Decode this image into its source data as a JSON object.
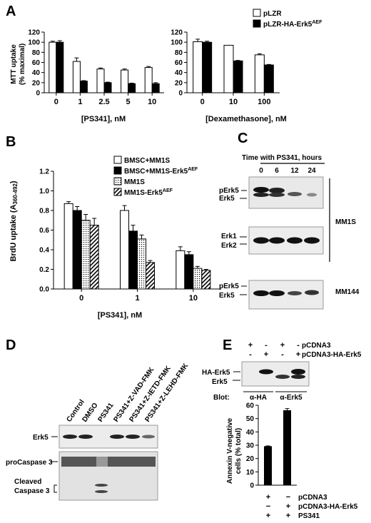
{
  "panels": {
    "A": "A",
    "B": "B",
    "C": "C",
    "D": "D",
    "E": "E"
  },
  "panelA": {
    "legend": [
      {
        "label": "pLZR",
        "sup": "",
        "color": "#ffffff"
      },
      {
        "label": "pLZR-HA-Erk5",
        "sup": "AEF",
        "color": "#000000"
      }
    ],
    "left_xlabel": "[PS341], nM",
    "right_xlabel": "[Dexamethasone], nM",
    "ylabel_line1": "MTT uptake",
    "ylabel_line2": "(% maximal)"
  },
  "panelB": {
    "legend": [
      {
        "label": "BMSC+MM1S",
        "sup": ""
      },
      {
        "label": "BMSC+MM1S-Erk5",
        "sup": "AEF"
      },
      {
        "label": "MM1S",
        "sup": ""
      },
      {
        "label": "MM1S-Erk5",
        "sup": "AEF"
      }
    ],
    "ylabel": "BrdU uptake (A",
    "ylabel_sub": "360-492",
    "ylabel_end": ")",
    "xlabel": "[PS341], nM"
  },
  "panelC": {
    "title": "Time with PS341, hours",
    "times": [
      "0",
      "6",
      "12",
      "24"
    ],
    "labels": {
      "perk5_a": "pErk5",
      "erk5_a": "Erk5",
      "erk1": "Erk1",
      "erk2": "Erk2",
      "perk5_b": "pErk5",
      "erk5_b": "Erk5",
      "mm1s": "MM1S",
      "mm144": "MM144"
    }
  },
  "panelD": {
    "lanes": [
      "Control",
      "DMSO",
      "PS341",
      "PS341+Z-VAD-FMK",
      "PS341+Z-IETD-FMK",
      "PS341+Z-LEHD-FMK"
    ],
    "erk5": "Erk5",
    "procasp": "proCaspase 3",
    "cleaved1": "Cleaved",
    "cleaved2": "Caspase 3"
  },
  "panelE": {
    "pm_rows": [
      {
        "label": "pCDNA3",
        "signs": [
          "+",
          "-",
          "+",
          "-"
        ]
      },
      {
        "label": "pCDNA3-HA-Erk5",
        "signs": [
          "-",
          "+",
          "-",
          "+"
        ]
      }
    ],
    "ha_erk5": "HA-Erk5",
    "erk5": "Erk5",
    "blot": "Blot:",
    "blot_ha": "α-HA",
    "blot_erk5": "α-Erk5",
    "ylabel_line1": "Annexin V-negative",
    "ylabel_line2": "cells (% total)",
    "bottom_rows": [
      {
        "label": "pCDNA3",
        "signs": [
          "+",
          "−"
        ]
      },
      {
        "label": "pCDNA3-HA-Erk5",
        "signs": [
          "−",
          "+"
        ]
      },
      {
        "label": "PS341",
        "signs": [
          "+",
          "+"
        ]
      }
    ]
  },
  "chart_data": [
    {
      "type": "bar",
      "panel": "A-left",
      "categories": [
        "0",
        "1",
        "2.5",
        "5",
        "10"
      ],
      "series": [
        {
          "name": "pLZR",
          "values": [
            100,
            62,
            47,
            45,
            50
          ],
          "errors": [
            2,
            7,
            2,
            2,
            2
          ]
        },
        {
          "name": "pLZR-HA-Erk5AEF",
          "values": [
            100,
            23,
            20,
            18,
            18
          ],
          "errors": [
            3,
            1,
            1,
            1,
            2
          ]
        }
      ],
      "ylim": [
        0,
        120
      ],
      "yticks": [
        0,
        20,
        40,
        60,
        80,
        100,
        120
      ],
      "xlabel": "[PS341], nM",
      "ylabel": "MTT uptake (% maximal)"
    },
    {
      "type": "bar",
      "panel": "A-right",
      "categories": [
        "0",
        "10",
        "100"
      ],
      "series": [
        {
          "name": "pLZR",
          "values": [
            101,
            94,
            75
          ],
          "errors": [
            5,
            0,
            2
          ]
        },
        {
          "name": "pLZR-HA-Erk5AEF",
          "values": [
            100,
            63,
            55
          ],
          "errors": [
            2,
            1,
            1
          ]
        }
      ],
      "ylim": [
        0,
        120
      ],
      "yticks": [
        0,
        20,
        40,
        60,
        80,
        100,
        120
      ],
      "xlabel": "[Dexamethasone], nM"
    },
    {
      "type": "bar",
      "panel": "B",
      "categories": [
        "0",
        "1",
        "10"
      ],
      "series": [
        {
          "name": "BMSC+MM1S",
          "values": [
            0.87,
            0.8,
            0.39
          ],
          "errors": [
            0.02,
            0.05,
            0.04
          ]
        },
        {
          "name": "BMSC+MM1S-Erk5AEF",
          "values": [
            0.8,
            0.59,
            0.35
          ],
          "errors": [
            0.04,
            0.06,
            0.03
          ]
        },
        {
          "name": "MM1S",
          "values": [
            0.7,
            0.51,
            0.21
          ],
          "errors": [
            0.06,
            0.04,
            0.02
          ]
        },
        {
          "name": "MM1S-Erk5AEF",
          "values": [
            0.65,
            0.27,
            0.19
          ],
          "errors": [
            0.07,
            0.02,
            0.01
          ]
        }
      ],
      "ylim": [
        0,
        1.2
      ],
      "yticks": [
        0,
        0.2,
        0.4,
        0.6,
        0.8,
        1.0,
        1.2
      ],
      "xlabel": "[PS341], nM",
      "ylabel": "BrdU uptake (A360-492)"
    },
    {
      "type": "bar",
      "panel": "E",
      "categories": [
        "pCDNA3",
        "pCDNA3-HA-Erk5"
      ],
      "values": [
        29,
        56
      ],
      "errors": [
        0.5,
        1.5
      ],
      "ylim": [
        0,
        60
      ],
      "yticks": [
        0,
        10,
        20,
        30,
        40,
        50,
        60
      ],
      "ylabel": "Annexin V-negative cells (% total)"
    }
  ]
}
